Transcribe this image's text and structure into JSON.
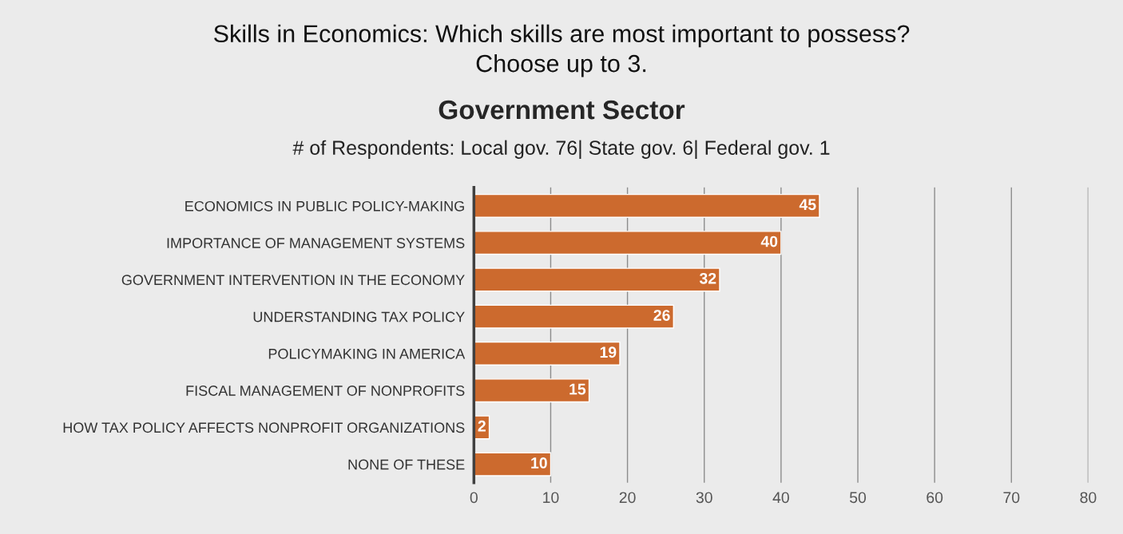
{
  "chart_data": {
    "type": "bar",
    "orientation": "horizontal",
    "title": "Skills in Economics: Which skills are most important to possess?\nChoose up to 3.",
    "subtitle": "Government Sector",
    "annotations": [
      "# of Respondents: Local gov. 76| State gov. 6| Federal gov. 1"
    ],
    "categories": [
      "ECONOMICS IN PUBLIC POLICY-MAKING",
      "IMPORTANCE OF MANAGEMENT SYSTEMS",
      "GOVERNMENT INTERVENTION IN THE ECONOMY",
      "UNDERSTANDING TAX POLICY",
      "POLICYMAKING IN AMERICA",
      "FISCAL MANAGEMENT OF NONPROFITS",
      "HOW TAX POLICY AFFECTS NONPROFIT ORGANIZATIONS",
      "NONE OF THESE"
    ],
    "values": [
      45,
      40,
      32,
      26,
      19,
      15,
      2,
      10
    ],
    "color": "#cc6a2e",
    "xlim": [
      0,
      80
    ],
    "xticks": [
      0,
      10,
      20,
      30,
      40,
      50,
      60,
      70,
      80
    ],
    "grid": "x",
    "data_labels": true,
    "legend": false
  }
}
